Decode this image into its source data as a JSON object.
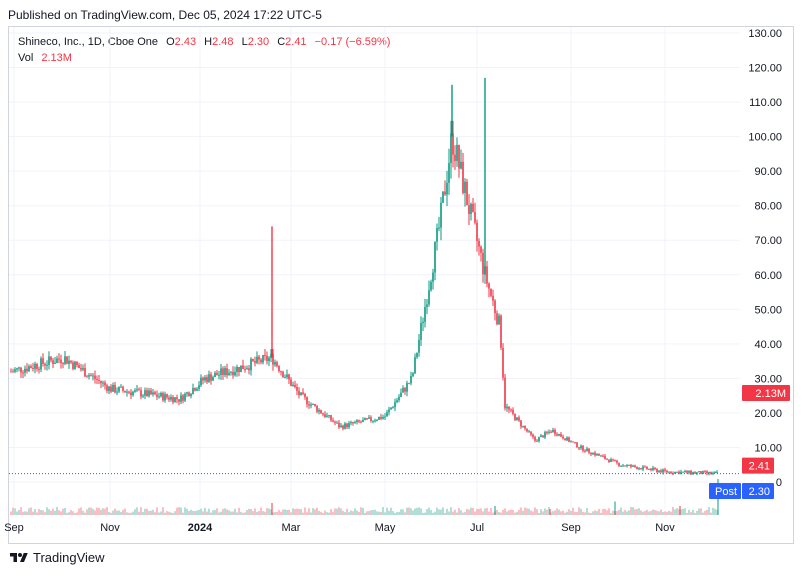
{
  "header": {
    "published": "Published on TradingView.com, Dec 05, 2024 17:22 UTC-5"
  },
  "legend": {
    "symbol": "Shineco, Inc., 1D, Cboe One",
    "o_label": "O",
    "o": "2.43",
    "h_label": "H",
    "h": "2.48",
    "l_label": "L",
    "l": "2.30",
    "c_label": "C",
    "c": "2.41",
    "change": "−0.17 (−6.59%)",
    "vol_label": "Vol",
    "vol": "2.13M"
  },
  "footer": {
    "brand": "TradingView"
  },
  "colors": {
    "up": "#089981",
    "down": "#f23645",
    "post": "#2962ff",
    "grid": "#f0f3fa",
    "axis": "#131722"
  },
  "badges": {
    "vol": "2.13M",
    "close": "2.41",
    "post_label": "Post",
    "post": "2.30"
  },
  "chart_data": {
    "type": "candlestick",
    "title": "Shineco, Inc., 1D, Cboe One",
    "x_ticks": [
      "Sep",
      "Nov",
      "2024",
      "Mar",
      "May",
      "Jul",
      "Sep",
      "Nov"
    ],
    "y_ticks": [
      "0",
      "10.00",
      "20.00",
      "30.00",
      "40.00",
      "50.00",
      "60.00",
      "70.00",
      "80.00",
      "90.00",
      "100.00",
      "110.00",
      "120.00",
      "130.00"
    ],
    "ylim": [
      0,
      130
    ],
    "grid": true,
    "last_close": 2.41,
    "post_price": 2.3,
    "series": [
      {
        "date": "2023-09",
        "close": 32
      },
      {
        "date": "2023-10",
        "close": 36
      },
      {
        "date": "2023-11",
        "close": 27
      },
      {
        "date": "2023-12",
        "close": 24
      },
      {
        "date": "2024-01",
        "close": 30
      },
      {
        "date": "2024-02-15",
        "close": 36,
        "high": 74
      },
      {
        "date": "2024-03",
        "close": 25
      },
      {
        "date": "2024-04",
        "close": 16
      },
      {
        "date": "2024-05",
        "close": 19
      },
      {
        "date": "2024-05-20",
        "close": 30
      },
      {
        "date": "2024-06-01",
        "close": 75
      },
      {
        "date": "2024-06-10",
        "close": 100,
        "high": 115
      },
      {
        "date": "2024-06-25",
        "close": 60,
        "high": 117
      },
      {
        "date": "2024-07-05",
        "close": 45
      },
      {
        "date": "2024-07-15",
        "close": 22
      },
      {
        "date": "2024-08",
        "close": 12
      },
      {
        "date": "2024-08-20",
        "close": 15
      },
      {
        "date": "2024-09",
        "close": 10
      },
      {
        "date": "2024-10",
        "close": 5
      },
      {
        "date": "2024-11",
        "close": 3
      },
      {
        "date": "2024-12-05",
        "close": 2.41
      }
    ]
  }
}
